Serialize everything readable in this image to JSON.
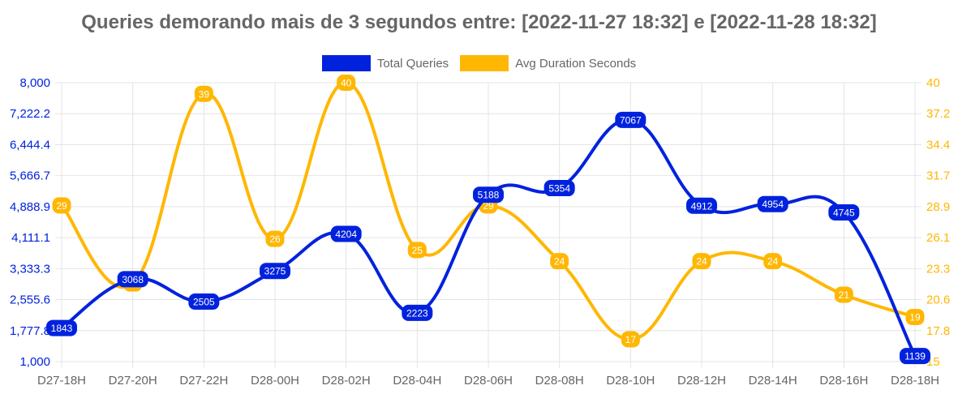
{
  "title": "Queries demorando mais de 3 segundos entre: [2022-11-27 18:32] e [2022-11-28 18:32]",
  "legend": [
    {
      "label": "Total Queries",
      "color": "#0022dd"
    },
    {
      "label": "Avg Duration Seconds",
      "color": "#ffb703"
    }
  ],
  "chart_data": {
    "type": "line",
    "title": "Queries demorando mais de 3 segundos entre: [2022-11-27 18:32] e [2022-11-28 18:32]",
    "categories": [
      "D27-18H",
      "D27-20H",
      "D27-22H",
      "D28-00H",
      "D28-02H",
      "D28-04H",
      "D28-06H",
      "D28-08H",
      "D28-10H",
      "D28-12H",
      "D28-14H",
      "D28-16H",
      "D28-18H"
    ],
    "series": [
      {
        "name": "Total Queries",
        "axis": "left",
        "color": "#0022dd",
        "values": [
          1843,
          3068,
          2505,
          3275,
          4204,
          2223,
          5188,
          5354,
          7067,
          4912,
          4954,
          4745,
          1139
        ]
      },
      {
        "name": "Avg Duration Seconds",
        "axis": "right",
        "color": "#ffb703",
        "values": [
          29,
          22,
          39,
          26,
          40,
          25,
          29,
          24,
          17,
          24,
          24,
          21,
          19
        ]
      }
    ],
    "y_left": {
      "ticks": [
        "8,000",
        "7,222.2",
        "6,444.4",
        "5,666.7",
        "4,888.9",
        "4,111.1",
        "3,333.3",
        "2,555.6",
        "1,777.8",
        "1,000"
      ],
      "range": [
        1000,
        8000
      ]
    },
    "y_right": {
      "ticks": [
        "40",
        "37.2",
        "34.4",
        "31.7",
        "28.9",
        "26.1",
        "23.3",
        "20.6",
        "17.8",
        "15"
      ],
      "range": [
        15,
        40
      ]
    },
    "xlabel": "",
    "ylabel": "",
    "grid": true,
    "legend_position": "top",
    "smooth": true,
    "data_labels": true
  }
}
